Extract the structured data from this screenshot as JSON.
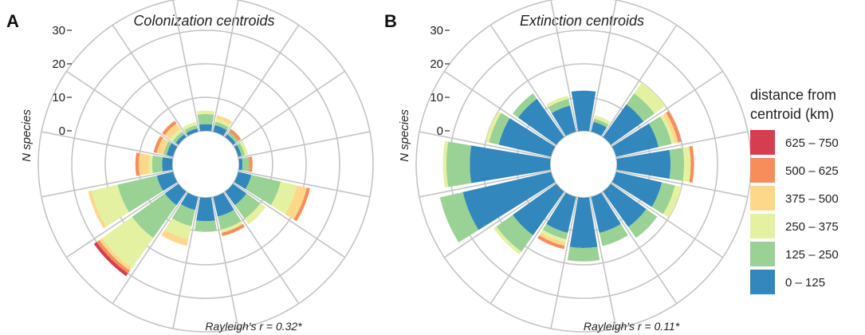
{
  "chart_data": [
    {
      "type": "polar_stacked_bar",
      "panel_label": "A",
      "title": "Colonization centroids",
      "ylabel": "N species",
      "r_ticks": [
        0,
        10,
        20,
        30
      ],
      "rlim": [
        -10,
        40
      ],
      "direction_bins": 16,
      "stack_order": [
        "0 – 125",
        "125 – 250",
        "250 – 375",
        "375 – 500",
        "500 – 625",
        "625 – 750"
      ],
      "bins_clockwise_from_north": [
        [
          2,
          3,
          1,
          0,
          0,
          0
        ],
        [
          2,
          1,
          1,
          1,
          0,
          0
        ],
        [
          1,
          1,
          0,
          0,
          1,
          0
        ],
        [
          1,
          1,
          1,
          0,
          0,
          0
        ],
        [
          1,
          2,
          0,
          0,
          1,
          0
        ],
        [
          4,
          9,
          5,
          3,
          1,
          0
        ],
        [
          5,
          5,
          2,
          0,
          0,
          0
        ],
        [
          6,
          4,
          1,
          0,
          1,
          0
        ],
        [
          7,
          3,
          0,
          0,
          0,
          0
        ],
        [
          4,
          5,
          4,
          2,
          0,
          0
        ],
        [
          5,
          12,
          11,
          1,
          1,
          1
        ],
        [
          5,
          12,
          8,
          1,
          0,
          0
        ],
        [
          3,
          3,
          1,
          3,
          1,
          0
        ],
        [
          2,
          1,
          0,
          2,
          1,
          0
        ],
        [
          1,
          1,
          1,
          2,
          1,
          0
        ],
        [
          1,
          1,
          1,
          0,
          0,
          0
        ]
      ],
      "statistic": "Rayleigh's r = 0.32*"
    },
    {
      "type": "polar_stacked_bar",
      "panel_label": "B",
      "title": "Extinction centroids",
      "ylabel": "N species",
      "r_ticks": [
        0,
        10,
        20,
        30
      ],
      "rlim": [
        -10,
        40
      ],
      "direction_bins": 16,
      "stack_order": [
        "0 – 125",
        "125 – 250",
        "250 – 375",
        "375 – 500",
        "500 – 625",
        "625 – 750"
      ],
      "bins_clockwise_from_north": [
        [
          12,
          0,
          0,
          0,
          0,
          0
        ],
        [
          3,
          1,
          1,
          0,
          0,
          0
        ],
        [
          12,
          4,
          4,
          0,
          0,
          0
        ],
        [
          13,
          4,
          1,
          1,
          1,
          0
        ],
        [
          16,
          4,
          2,
          0,
          1,
          0
        ],
        [
          14,
          4,
          2,
          0,
          0,
          0
        ],
        [
          13,
          4,
          0,
          0,
          0,
          0
        ],
        [
          11,
          4,
          0,
          0,
          0,
          0
        ],
        [
          15,
          4,
          0,
          0,
          0,
          0
        ],
        [
          11,
          2,
          1,
          1,
          1,
          0
        ],
        [
          16,
          6,
          1,
          0,
          0,
          0
        ],
        [
          27,
          7,
          0,
          0,
          0,
          0
        ],
        [
          24,
          7,
          1,
          0,
          0,
          0
        ],
        [
          16,
          3,
          1,
          0,
          0,
          0
        ],
        [
          14,
          2,
          0,
          0,
          0,
          0
        ],
        [
          8,
          2,
          1,
          0,
          0,
          0
        ]
      ],
      "statistic": "Rayleigh's r = 0.11*"
    }
  ],
  "legend": {
    "title_line1": "distance from",
    "title_line2": "centroid (km)",
    "entries": [
      {
        "label": "625 – 750",
        "color": "#d53e4f"
      },
      {
        "label": "500 – 625",
        "color": "#f78d5a"
      },
      {
        "label": "375 – 500",
        "color": "#fdd88a"
      },
      {
        "label": "250 – 375",
        "color": "#e3f1a0"
      },
      {
        "label": "125 – 250",
        "color": "#99d294"
      },
      {
        "label": "0 – 125",
        "color": "#3288bd"
      }
    ]
  },
  "stack_colors": [
    "#3288bd",
    "#99d294",
    "#e3f1a0",
    "#fdd88a",
    "#f78d5a",
    "#d53e4f"
  ]
}
